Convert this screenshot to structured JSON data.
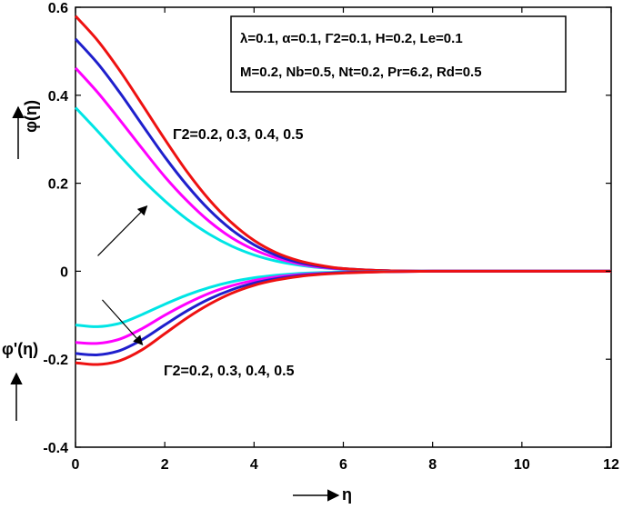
{
  "chart_data": {
    "type": "line",
    "xlim": [
      0,
      12
    ],
    "ylim": [
      -0.4,
      0.6
    ],
    "xticks": [
      0,
      2,
      4,
      6,
      8,
      10,
      12
    ],
    "yticks": [
      -0.4,
      -0.2,
      0,
      0.2,
      0.4,
      0.6
    ],
    "xtick_labels": [
      "0",
      "2",
      "4",
      "6",
      "8",
      "10",
      "12"
    ],
    "ytick_labels": [
      "-0.4",
      "-0.2",
      "0",
      "0.2",
      "0.4",
      "0.6"
    ],
    "xlabel": "η",
    "ylabel_top": "φ(η)",
    "ylabel_bottom": "φ'(η)",
    "grid": false,
    "legend_box": {
      "position": "top-right",
      "line1": "λ=0.1, α=0.1, Γ2=0.1, H=0.2, Le=0.1",
      "line2": "M=0.2, Nb=0.5, Nt=0.2, Pr=6.2, Rd=0.5"
    },
    "annotations": [
      {
        "text": "Γ2=0.2, 0.3, 0.4, 0.5",
        "arrow_from": [
          0.5,
          0.035
        ],
        "arrow_to": [
          1.6,
          0.148
        ]
      },
      {
        "text": "Γ2=0.2, 0.3, 0.4, 0.5",
        "arrow_from": [
          0.6,
          -0.065
        ],
        "arrow_to": [
          1.5,
          -0.167
        ]
      }
    ],
    "x": [
      0,
      0.5,
      1,
      1.5,
      2,
      2.5,
      3,
      3.5,
      4,
      4.5,
      5,
      5.5,
      6,
      7,
      8,
      9,
      10,
      11,
      12
    ],
    "series": [
      {
        "group": "phi",
        "color": "#00e5e5",
        "values": [
          0.372,
          0.318,
          0.262,
          0.208,
          0.16,
          0.118,
          0.084,
          0.057,
          0.037,
          0.023,
          0.014,
          0.008,
          0.004,
          0.001,
          0.0,
          0.0,
          0.0,
          0.0,
          0.0
        ]
      },
      {
        "group": "phi",
        "color": "#ff00ff",
        "values": [
          0.462,
          0.406,
          0.343,
          0.278,
          0.215,
          0.16,
          0.113,
          0.076,
          0.049,
          0.03,
          0.017,
          0.009,
          0.005,
          0.001,
          0.0,
          0.0,
          0.0,
          0.0,
          0.0
        ]
      },
      {
        "group": "phi",
        "color": "#1f1fcc",
        "values": [
          0.528,
          0.472,
          0.405,
          0.332,
          0.26,
          0.195,
          0.139,
          0.094,
          0.06,
          0.036,
          0.02,
          0.011,
          0.006,
          0.001,
          0.0,
          0.0,
          0.0,
          0.0,
          0.0
        ]
      },
      {
        "group": "phi",
        "color": "#ee1111",
        "values": [
          0.58,
          0.524,
          0.455,
          0.378,
          0.3,
          0.226,
          0.162,
          0.11,
          0.07,
          0.042,
          0.024,
          0.013,
          0.006,
          0.001,
          0.0,
          0.0,
          0.0,
          0.0,
          0.0
        ]
      },
      {
        "group": "phi_prime",
        "color": "#00e5e5",
        "values": [
          -0.122,
          -0.126,
          -0.118,
          -0.098,
          -0.075,
          -0.054,
          -0.037,
          -0.024,
          -0.015,
          -0.009,
          -0.005,
          -0.003,
          -0.002,
          -0.0005,
          0.0,
          0.0,
          0.0,
          0.0,
          0.0
        ]
      },
      {
        "group": "phi_prime",
        "color": "#ff00ff",
        "values": [
          -0.162,
          -0.164,
          -0.154,
          -0.13,
          -0.1,
          -0.073,
          -0.05,
          -0.033,
          -0.021,
          -0.013,
          -0.008,
          -0.005,
          -0.003,
          -0.001,
          0.0,
          0.0,
          0.0,
          0.0,
          0.0
        ]
      },
      {
        "group": "phi_prime",
        "color": "#1f1fcc",
        "values": [
          -0.187,
          -0.19,
          -0.18,
          -0.155,
          -0.122,
          -0.09,
          -0.063,
          -0.042,
          -0.027,
          -0.017,
          -0.01,
          -0.006,
          -0.003,
          -0.001,
          0.0,
          0.0,
          0.0,
          0.0,
          0.0
        ]
      },
      {
        "group": "phi_prime",
        "color": "#ee1111",
        "values": [
          -0.208,
          -0.212,
          -0.203,
          -0.178,
          -0.142,
          -0.106,
          -0.075,
          -0.05,
          -0.032,
          -0.02,
          -0.012,
          -0.007,
          -0.004,
          -0.001,
          0.0,
          0.0,
          0.0,
          0.0,
          0.0
        ]
      }
    ]
  }
}
